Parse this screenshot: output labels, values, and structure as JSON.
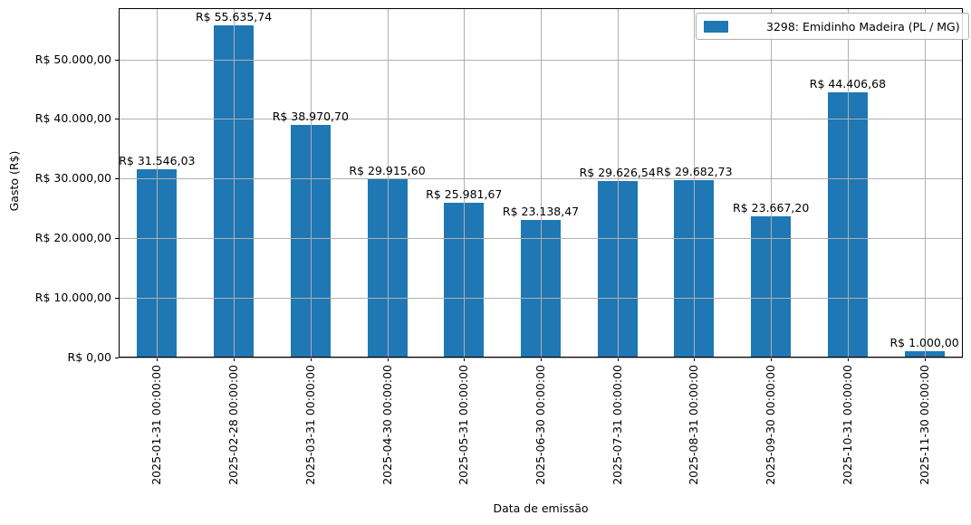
{
  "chart_data": {
    "type": "bar",
    "title": "",
    "xlabel": "Data de emissão",
    "ylabel": "Gasto (R$)",
    "legend": {
      "label": "3298: Emidinho Madeira (PL / MG)",
      "position": "upper right",
      "swatch_color": "#1f77b4"
    },
    "categories": [
      "2025-01-31 00:00:00",
      "2025-02-28 00:00:00",
      "2025-03-31 00:00:00",
      "2025-04-30 00:00:00",
      "2025-05-31 00:00:00",
      "2025-06-30 00:00:00",
      "2025-07-31 00:00:00",
      "2025-08-31 00:00:00",
      "2025-09-30 00:00:00",
      "2025-10-31 00:00:00",
      "2025-11-30 00:00:00"
    ],
    "values": [
      31546.03,
      55635.74,
      38970.7,
      29915.6,
      25981.67,
      23138.47,
      29626.54,
      29682.73,
      23667.2,
      44406.68,
      1000.0
    ],
    "bar_value_labels": [
      "R$ 31.546,03",
      "R$ 55.635,74",
      "R$ 38.970,70",
      "R$ 29.915,60",
      "R$ 25.981,67",
      "R$ 23.138,47",
      "R$ 29.626,54",
      "R$ 29.682,73",
      "R$ 23.667,20",
      "R$ 44.406,68",
      "R$ 1.000,00"
    ],
    "ytick_values": [
      0,
      10000,
      20000,
      30000,
      40000,
      50000
    ],
    "ytick_labels": [
      "R$ 0,00",
      "R$ 10.000,00",
      "R$ 20.000,00",
      "R$ 30.000,00",
      "R$ 40.000,00",
      "R$ 50.000,00"
    ],
    "ylim": [
      0,
      58575
    ],
    "grid": true,
    "grid_above_bars": true,
    "bar_color": "#1f77b4",
    "grid_color": "#b0b0b0",
    "axis_color": "#000000"
  }
}
